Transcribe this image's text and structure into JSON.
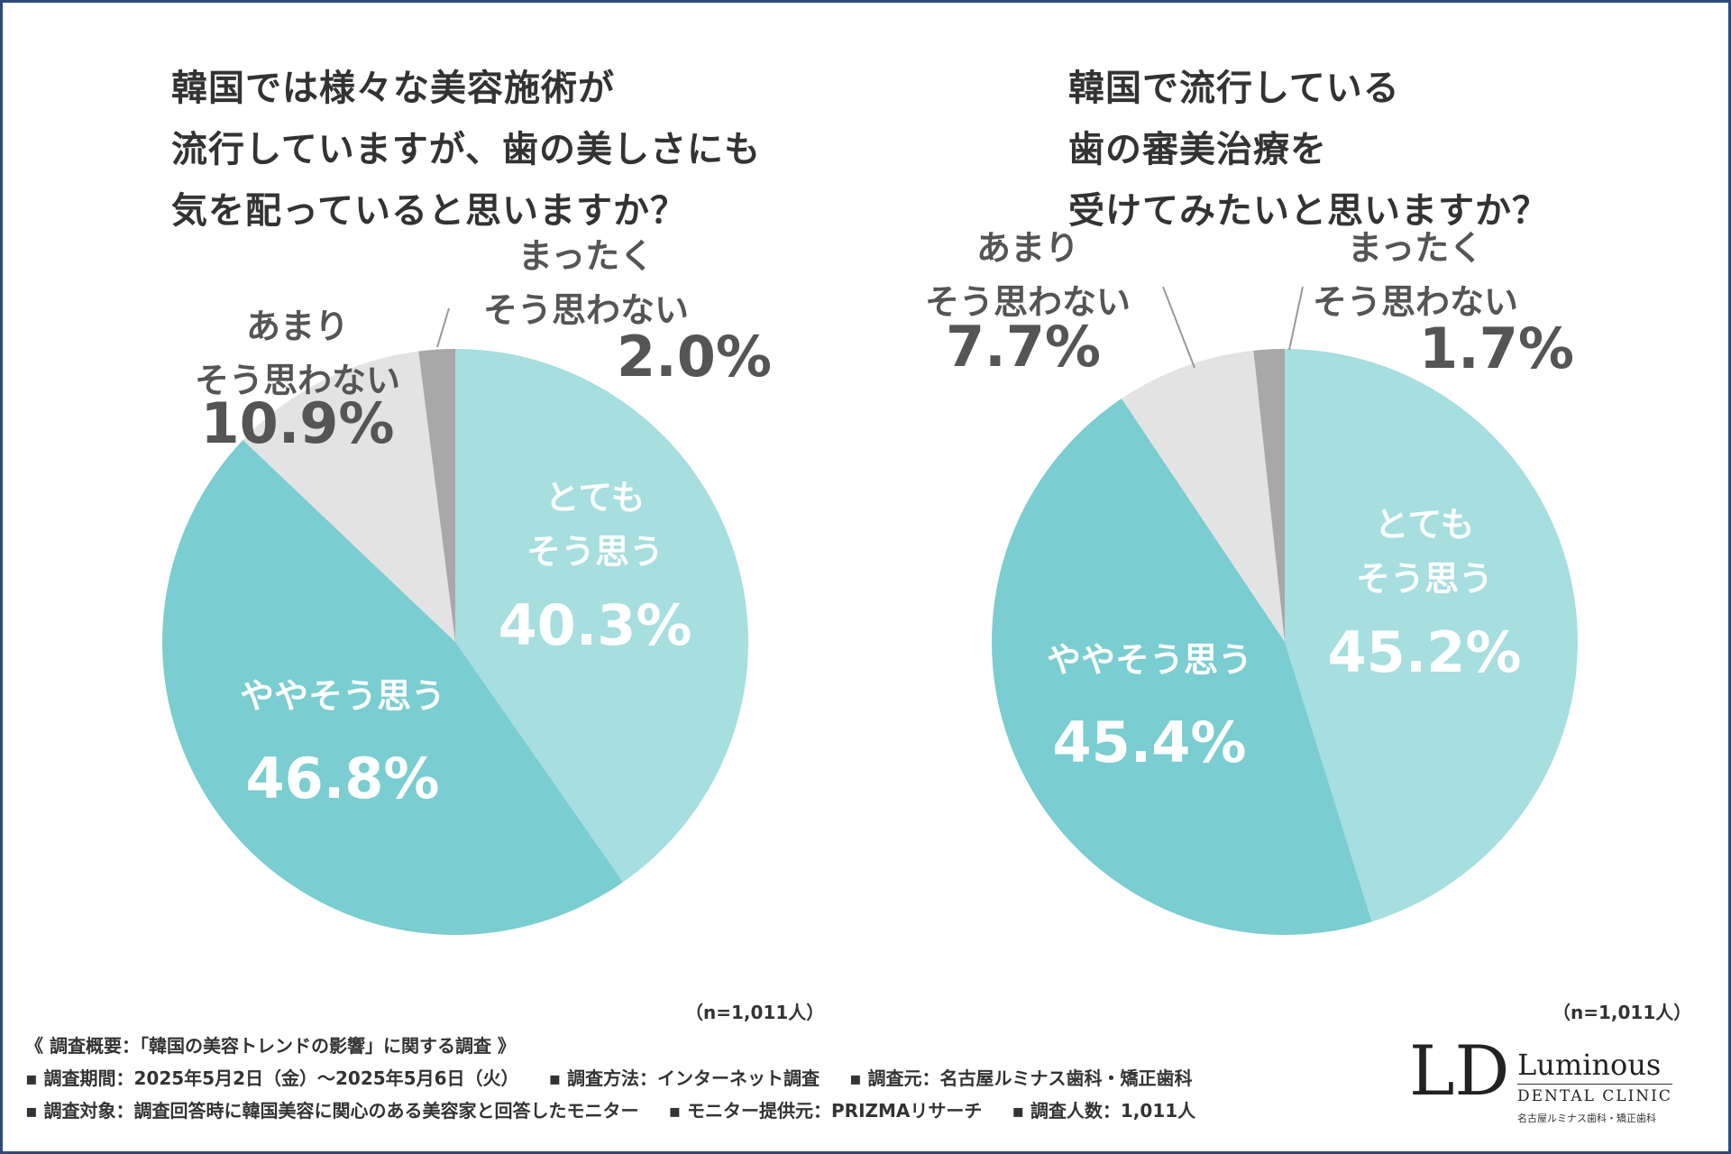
{
  "colors": {
    "very": "#a7dedf",
    "somewhat": "#7acdd0",
    "not_much": "#e3e3e3",
    "not_at_all": "#a8a8a8",
    "frame": "#2d4a7a"
  },
  "chart_data": [
    {
      "type": "pie",
      "title_lines": [
        "韓国では様々な美容施術が",
        "流行していますが、歯の美しさにも",
        "気を配っていると思いますか？"
      ],
      "n": "（n=1,011人）",
      "slices": [
        {
          "key": "very",
          "label_lines": [
            "とても",
            "そう思う"
          ],
          "pct_label": "40.3%",
          "value": 40.3
        },
        {
          "key": "somewhat",
          "label_lines": [
            "ややそう思う"
          ],
          "pct_label": "46.8%",
          "value": 46.8
        },
        {
          "key": "not_much",
          "label_lines": [
            "あまり",
            "そう思わない"
          ],
          "pct_label": "10.9%",
          "value": 10.9
        },
        {
          "key": "not_at_all",
          "label_lines": [
            "まったく",
            "そう思わない"
          ],
          "pct_label": "2.0%",
          "value": 2.0
        }
      ]
    },
    {
      "type": "pie",
      "title_lines": [
        "韓国で流行している",
        "歯の審美治療を",
        "受けてみたいと思いますか？"
      ],
      "n": "（n=1,011人）",
      "slices": [
        {
          "key": "very",
          "label_lines": [
            "とても",
            "そう思う"
          ],
          "pct_label": "45.2%",
          "value": 45.2
        },
        {
          "key": "somewhat",
          "label_lines": [
            "ややそう思う"
          ],
          "pct_label": "45.4%",
          "value": 45.4
        },
        {
          "key": "not_much",
          "label_lines": [
            "あまり",
            "そう思わない"
          ],
          "pct_label": "7.7%",
          "value": 7.7
        },
        {
          "key": "not_at_all",
          "label_lines": [
            "まったく",
            "そう思わない"
          ],
          "pct_label": "1.7%",
          "value": 1.7
        }
      ]
    }
  ],
  "footer": {
    "heading": "《 調査概要：「韓国の美容トレンドの影響」に関する調査 》",
    "period": "▪ 調査期間：2025年5月2日（金）～2025年5月6日（火）",
    "method": "▪ 調査方法：インターネット調査",
    "source": "▪ 調査元：名古屋ルミナス歯科・矯正歯科",
    "target": "▪ 調査対象：調査回答時に韓国美容に関心のある美容家と回答したモニター",
    "provider": "▪ モニター提供元：PRIZMAリサーチ",
    "count": "▪ 調査人数：1,011人"
  },
  "logo": {
    "mark": "LD",
    "name": "Luminous",
    "sub": "DENTAL CLINIC",
    "jp": "名古屋ルミナス歯科・矯正歯科"
  }
}
